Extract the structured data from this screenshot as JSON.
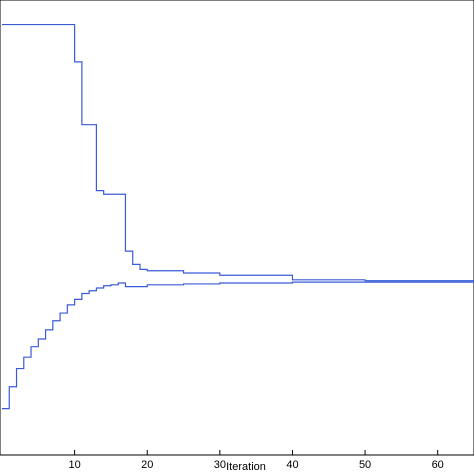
{
  "chart_data": {
    "type": "line",
    "title": "",
    "xlabel": "Iteration",
    "ylabel": "",
    "xlim": [
      0,
      65
    ],
    "ylim": [
      0,
      10
    ],
    "grid": false,
    "legend": "none",
    "line_color": "#3a5bd9",
    "step": true,
    "xticks": [
      10,
      20,
      30,
      40,
      50,
      60
    ],
    "xtick_labels": [
      "10",
      "20",
      "30",
      "40",
      "50",
      "60"
    ],
    "series": [
      {
        "values_note": "upper bound",
        "x": [
          0,
          10,
          11,
          13,
          14,
          17,
          18,
          19,
          20,
          25,
          30,
          40,
          50,
          65
        ],
        "y": [
          9.46,
          8.64,
          7.26,
          5.81,
          5.73,
          4.48,
          4.19,
          4.08,
          4.05,
          4.0,
          3.95,
          3.85,
          3.83,
          3.81
        ]
      },
      {
        "values_note": "lower bound",
        "x": [
          0,
          1,
          2,
          3,
          4,
          5,
          6,
          7,
          8,
          9,
          10,
          11,
          12,
          13,
          14,
          15,
          16,
          17,
          20,
          25,
          30,
          40,
          50,
          65
        ],
        "y": [
          1.02,
          1.5,
          1.9,
          2.15,
          2.38,
          2.55,
          2.75,
          2.95,
          3.12,
          3.3,
          3.42,
          3.55,
          3.61,
          3.67,
          3.72,
          3.74,
          3.78,
          3.7,
          3.74,
          3.76,
          3.78,
          3.8,
          3.8,
          3.81
        ]
      }
    ]
  }
}
